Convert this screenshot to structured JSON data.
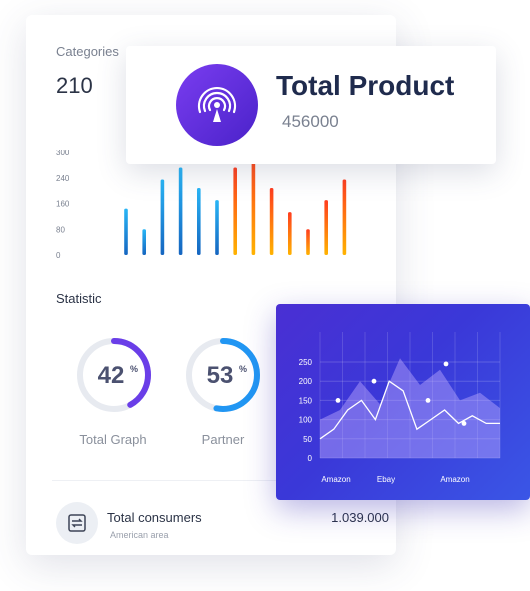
{
  "categories": {
    "title": "Categories",
    "value": "210",
    "bar_chart": {
      "y_ticks": [
        "300",
        "240",
        "160",
        "80",
        "0"
      ],
      "colors": [
        "#1e88e5",
        "#ff5722",
        "#ffb300"
      ],
      "bar_values": [
        135,
        75,
        220,
        255,
        195,
        160,
        255,
        300,
        195,
        125,
        75,
        160,
        220
      ]
    }
  },
  "statistic": {
    "title": "Statistic",
    "rings": [
      {
        "name": "Total Graph",
        "percent": 42,
        "value_label": "42",
        "unit": "%",
        "color": "#6a3ee8"
      },
      {
        "name": "Partner",
        "percent": 53,
        "value_label": "53",
        "unit": "%",
        "color": "#2196f3"
      }
    ]
  },
  "consumers": {
    "icon": "swap-icon",
    "title": "Total consumers",
    "subtitle": "American area",
    "value": "1.039.000"
  },
  "product": {
    "icon": "broadcast-icon",
    "title": "Total Product",
    "value": "456000"
  },
  "chart_data": {
    "type": "area",
    "y_ticks": [
      "250",
      "200",
      "150",
      "100",
      "50",
      "0"
    ],
    "x_labels": [
      "Amazon",
      "Ebay",
      "Amazon"
    ],
    "ylim": [
      0,
      250
    ],
    "series": [
      {
        "values": [
          50,
          75,
          125,
          150,
          100,
          200,
          175,
          75,
          100,
          125,
          90,
          110,
          90,
          90
        ]
      },
      {
        "values": [
          100,
          125,
          200,
          140,
          260,
          190,
          230,
          150,
          170,
          130
        ]
      }
    ],
    "points": [
      [
        1,
        150
      ],
      [
        3,
        200
      ],
      [
        6,
        150
      ],
      [
        7,
        245
      ],
      [
        8,
        90
      ]
    ]
  }
}
